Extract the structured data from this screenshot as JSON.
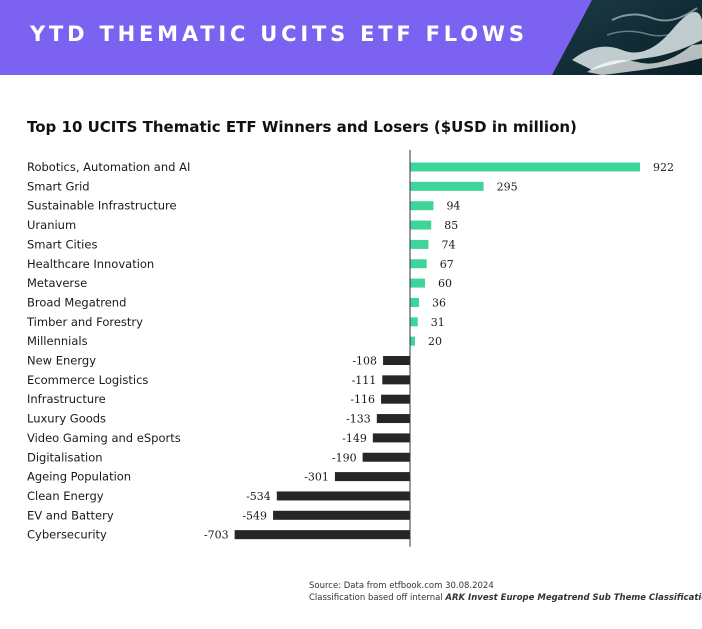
{
  "banner": {
    "title": "YTD THEMATIC UCITS ETF FLOWS"
  },
  "chart_data": {
    "type": "bar",
    "orientation": "horizontal",
    "title": "Top 10 UCITS Thematic ETF Winners and Losers ($USD in million)",
    "categories": [
      "Robotics, Automation and AI",
      "Smart Grid",
      "Sustainable Infrastructure",
      "Uranium",
      "Smart Cities",
      "Healthcare Innovation",
      "Metaverse",
      "Broad Megatrend",
      "Timber and Forestry",
      "Millennials",
      "New Energy",
      "Ecommerce Logistics",
      "Infrastructure",
      "Luxury Goods",
      "Video Gaming and eSports",
      "Digitalisation",
      "Ageing Population",
      "Clean Energy",
      "EV and Battery",
      "Cybersecurity"
    ],
    "values": [
      922,
      295,
      94,
      85,
      74,
      67,
      60,
      36,
      31,
      20,
      -108,
      -111,
      -116,
      -133,
      -149,
      -190,
      -301,
      -534,
      -549,
      -703
    ],
    "xlim": [
      -703,
      922
    ],
    "colors": {
      "positive": "#3ed59a",
      "negative": "#262626",
      "axis": "#333333"
    }
  },
  "source": {
    "line1": "Source: Data from etfbook.com 30.08.2024",
    "line2_prefix": "Classification based off internal ",
    "line2_emphasis": "ARK Invest Europe Megatrend Sub Theme Classification"
  },
  "colors": {
    "banner": "#7b62f0"
  }
}
